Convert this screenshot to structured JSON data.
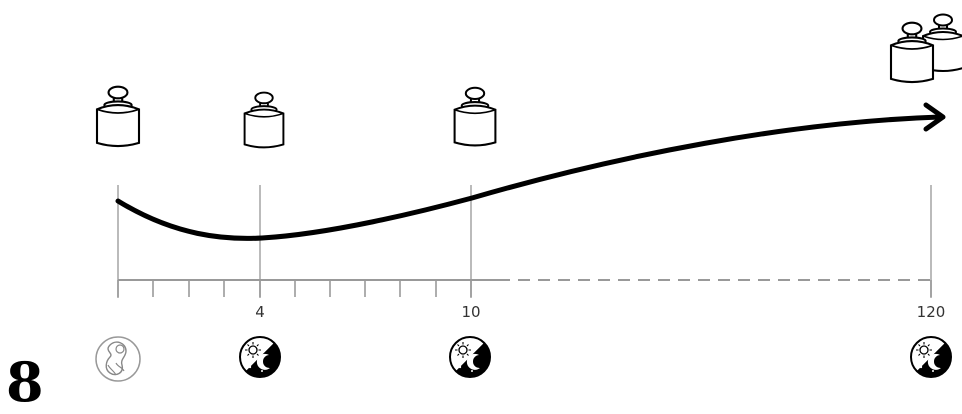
{
  "figure": {
    "number": "8"
  },
  "timeline": {
    "tick_labels": [
      "4",
      "10",
      "120"
    ],
    "markers": [
      {
        "label": "",
        "weight_icon": "weight-icon",
        "bottom_icon": "fetus-icon"
      },
      {
        "label": "4",
        "weight_icon": "weight-icon",
        "bottom_icon": "day-night-icon"
      },
      {
        "label": "10",
        "weight_icon": "weight-icon",
        "bottom_icon": "day-night-icon"
      },
      {
        "label": "120",
        "weight_icon": "double-weight-icon",
        "bottom_icon": "day-night-icon"
      }
    ]
  },
  "colors": {
    "ink": "#000000",
    "axis": "#999999",
    "guide": "#aaaaaa"
  }
}
